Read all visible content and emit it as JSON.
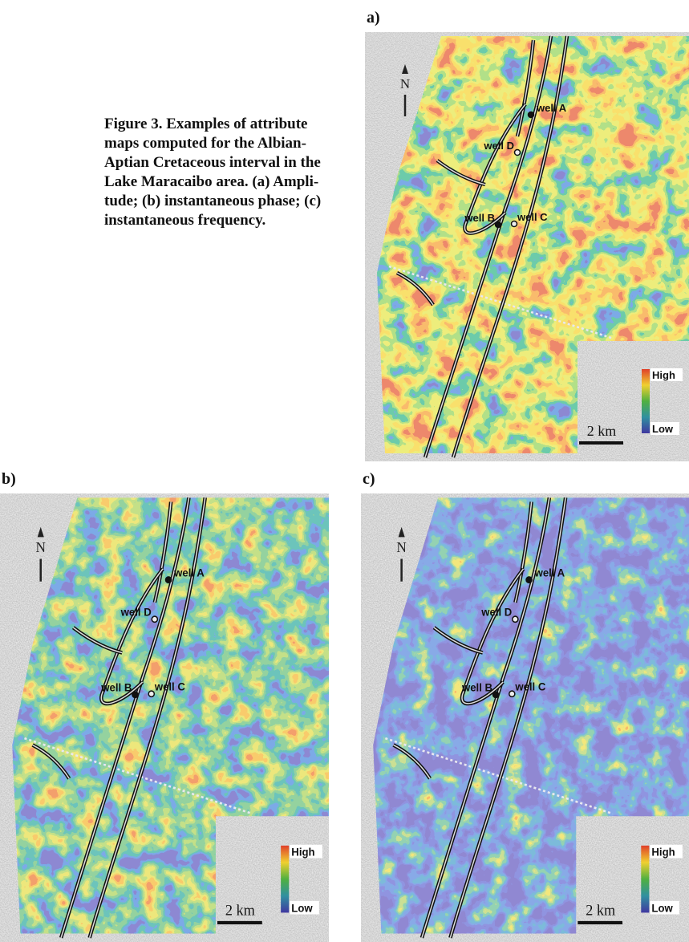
{
  "caption_lines": [
    "Figure 3. Examples of attribute",
    "maps computed for the Albian-",
    "Aptian Cretaceous interval in the",
    "Lake Maracaibo area. (a) Ampli-",
    "tude; (b) instantaneous phase; (c)",
    "instantaneous frequency."
  ],
  "panels": [
    {
      "label": "a)",
      "north": "N",
      "wells": [
        "well A",
        "well D",
        "well B",
        "well C"
      ],
      "legend_high": "High",
      "legend_low": "Low",
      "scale": "2 km"
    },
    {
      "label": "b)",
      "north": "N",
      "wells": [
        "well A",
        "well D",
        "well B",
        "well C"
      ],
      "legend_high": "High",
      "legend_low": "Low",
      "scale": "2 km"
    },
    {
      "label": "c)",
      "north": "N",
      "wells": [
        "well A",
        "well D",
        "well B",
        "well C"
      ],
      "legend_high": "High",
      "legend_low": "Low",
      "scale": "2 km"
    }
  ]
}
